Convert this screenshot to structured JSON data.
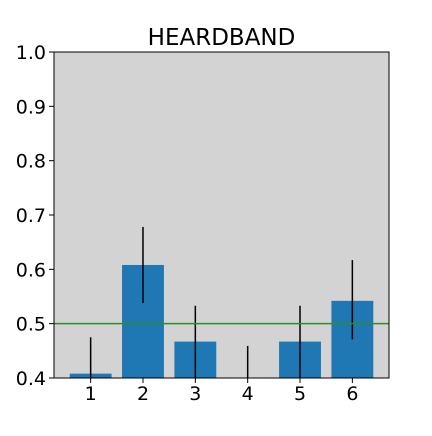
{
  "chart_data": {
    "type": "bar",
    "title": "HEARDBAND",
    "xlabel": "",
    "ylabel": "",
    "categories": [
      "1",
      "2",
      "3",
      "4",
      "5",
      "6"
    ],
    "values": [
      0.408,
      0.608,
      0.467,
      0.4,
      0.467,
      0.542
    ],
    "error_low": [
      0.4,
      0.538,
      0.4,
      0.4,
      0.4,
      0.471
    ],
    "error_high": [
      0.475,
      0.678,
      0.533,
      0.459,
      0.533,
      0.617
    ],
    "ylim": [
      0.4,
      1.0
    ],
    "yticks": [
      "0.4",
      "0.5",
      "0.6",
      "0.7",
      "0.8",
      "0.9",
      "1.0"
    ],
    "reference_line": 0.5,
    "grid": false,
    "colors": {
      "bar": "#1f77b4",
      "error_bar": "#000000",
      "reference_line": "#2e8b2e",
      "plot_background": "#d3d3d3",
      "axes": "#000000"
    }
  }
}
